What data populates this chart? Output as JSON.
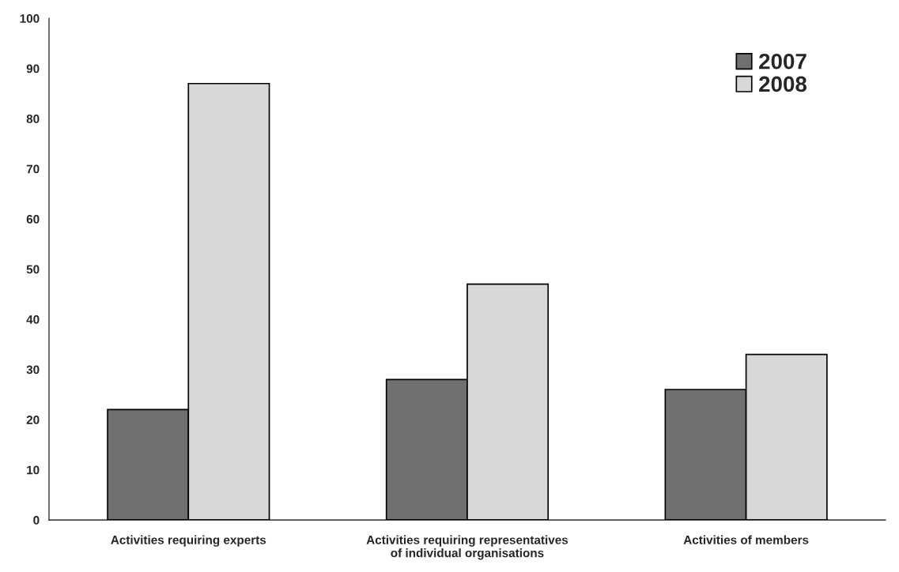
{
  "chart_data": {
    "type": "bar",
    "categories": [
      "Activities requiring experts",
      "Activities requiring representatives\nof individual organisations",
      "Activities of members"
    ],
    "series": [
      {
        "name": "2007",
        "color": "#707070",
        "values": [
          22,
          28,
          26
        ]
      },
      {
        "name": "2008",
        "color": "#d8d8d8",
        "values": [
          87,
          47,
          33
        ]
      }
    ],
    "ylim": [
      0,
      100
    ],
    "yticks": [
      0,
      10,
      20,
      30,
      40,
      50,
      60,
      70,
      80,
      90,
      100
    ],
    "grid": false,
    "legend": "top right"
  }
}
